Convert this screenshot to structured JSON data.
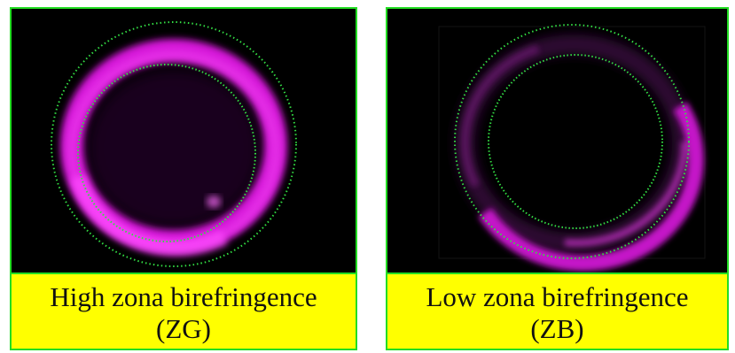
{
  "panels": [
    {
      "caption_line1": "High zona birefringence",
      "caption_line2": "(ZG)"
    },
    {
      "caption_line1": "Low zona birefringence",
      "caption_line2": "(ZB)"
    }
  ],
  "colors": {
    "border": "#22dd22",
    "caption_bg": "#ffff00",
    "ring": "#e020e8",
    "dotted_circle": "#33dd44",
    "background": "#000000"
  }
}
